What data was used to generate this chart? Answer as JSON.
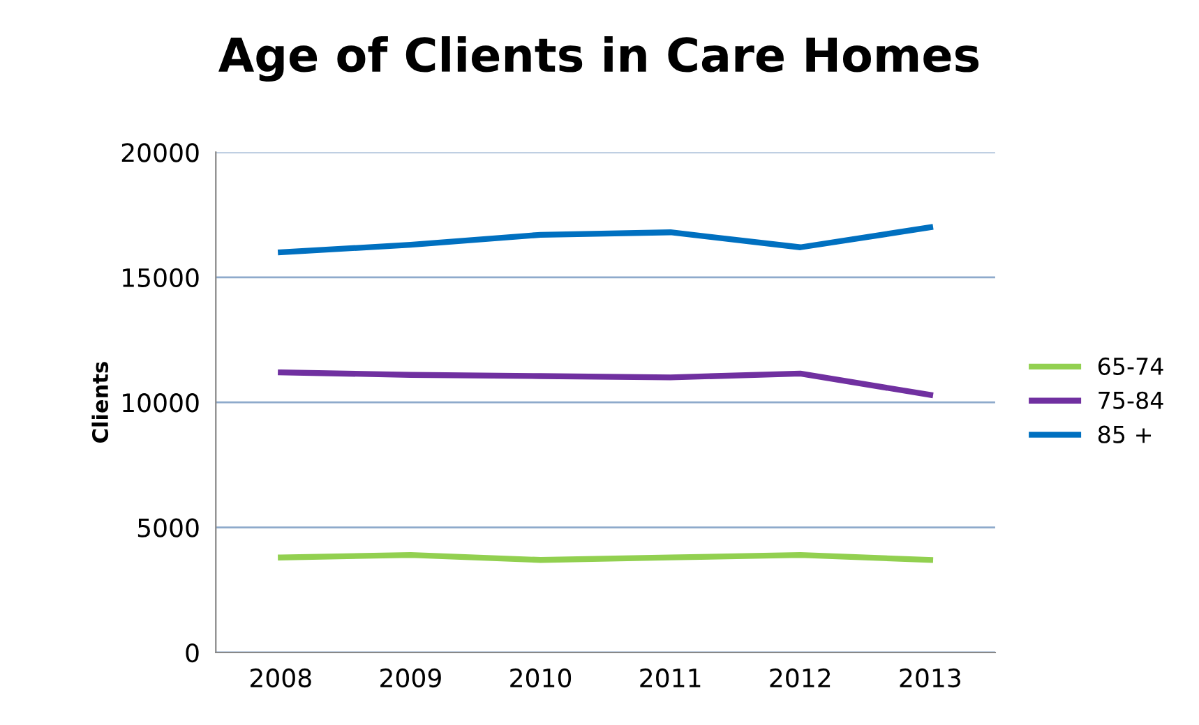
{
  "chart_data": {
    "type": "line",
    "title": "Age of Clients in Care Homes",
    "ylabel": "Clients",
    "categories": [
      "2008",
      "2009",
      "2010",
      "2011",
      "2012",
      "2013"
    ],
    "series": [
      {
        "name": "65-74",
        "color": "#92d050",
        "values": [
          3800,
          3900,
          3700,
          3800,
          3900,
          3700
        ]
      },
      {
        "name": "75-84",
        "color": "#7030a0",
        "values": [
          11200,
          11100,
          11050,
          11000,
          11150,
          10300
        ]
      },
      {
        "name": "85 +",
        "color": "#0070c0",
        "values": [
          16000,
          16300,
          16700,
          16800,
          16200,
          17000
        ]
      }
    ],
    "ylim": [
      0,
      20000
    ],
    "yticks": [
      0,
      5000,
      10000,
      15000,
      20000
    ],
    "grid": "y",
    "legend": "right",
    "marker": "none",
    "line_style": "solid"
  }
}
